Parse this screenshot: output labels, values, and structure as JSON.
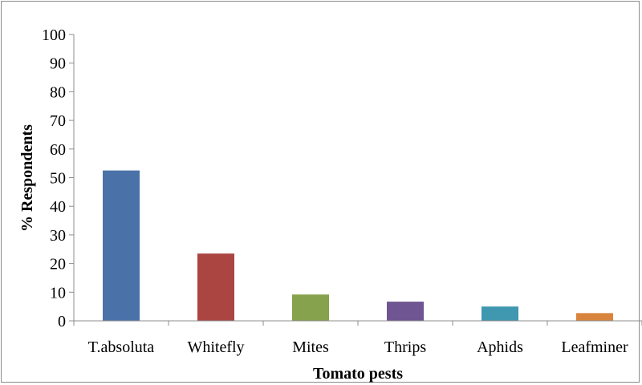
{
  "chart_data": {
    "type": "bar",
    "title": "",
    "xlabel": "Tomato pests",
    "ylabel": "% Respondents",
    "categories": [
      "T.absoluta",
      "Whitefly",
      "Mites",
      "Thrips",
      "Aphids",
      "Leafminer"
    ],
    "values": [
      52.5,
      23.5,
      9.2,
      6.7,
      5,
      2.7
    ],
    "colors": [
      "#4a72a8",
      "#ab4542",
      "#87a24d",
      "#6f5592",
      "#3f97b0",
      "#d9843e"
    ],
    "ylim": [
      0,
      100
    ],
    "yticks": [
      0,
      10,
      20,
      30,
      40,
      50,
      60,
      70,
      80,
      90,
      100
    ],
    "grid": false,
    "legend": "none"
  }
}
